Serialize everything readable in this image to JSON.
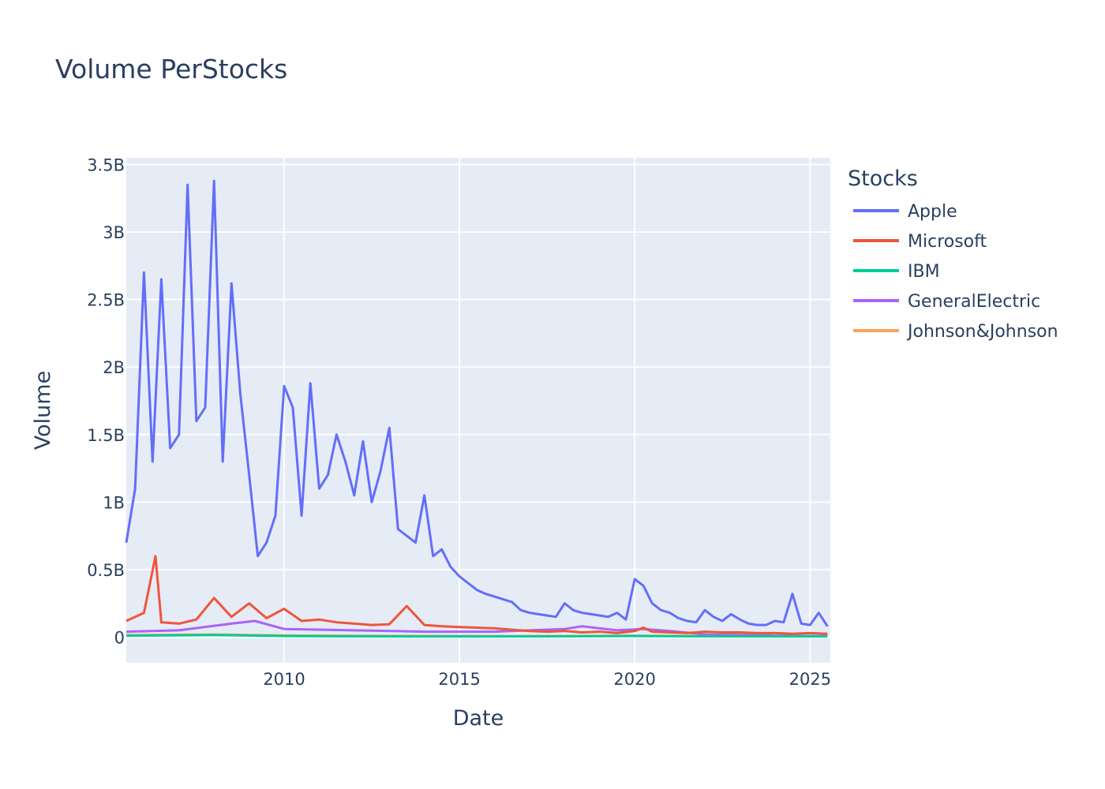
{
  "chart_data": {
    "type": "line",
    "title": "Volume PerStocks",
    "xlabel": "Date",
    "ylabel": "Volume",
    "xlim": [
      "2005-07-01",
      "2025-07-31"
    ],
    "ylim": [
      -190000000,
      3550000000
    ],
    "x_ticks": [
      {
        "date": "2010-01-01",
        "label": "2010"
      },
      {
        "date": "2015-01-01",
        "label": "2015"
      },
      {
        "date": "2020-01-01",
        "label": "2020"
      },
      {
        "date": "2025-01-01",
        "label": "2025"
      }
    ],
    "y_ticks": [
      {
        "value": 0,
        "label": "0"
      },
      {
        "value": 500000000,
        "label": "0.5B"
      },
      {
        "value": 1000000000,
        "label": "1B"
      },
      {
        "value": 1500000000,
        "label": "1.5B"
      },
      {
        "value": 2000000000,
        "label": "2B"
      },
      {
        "value": 2500000000,
        "label": "2.5B"
      },
      {
        "value": 3000000000,
        "label": "3B"
      },
      {
        "value": 3500000000,
        "label": "3.5B"
      }
    ],
    "grid": true,
    "legend_title": "Stocks",
    "legend_position": "right",
    "background_color": "#e5ecf6",
    "series": [
      {
        "name": "Apple",
        "color": "#636efa",
        "x": [
          "2005-07-01",
          "2005-10-01",
          "2006-01-01",
          "2006-04-01",
          "2006-07-01",
          "2006-10-01",
          "2007-01-01",
          "2007-04-01",
          "2007-07-01",
          "2007-10-01",
          "2008-01-01",
          "2008-04-01",
          "2008-07-01",
          "2008-10-01",
          "2009-01-01",
          "2009-04-01",
          "2009-07-01",
          "2009-10-01",
          "2010-01-01",
          "2010-04-01",
          "2010-07-01",
          "2010-10-01",
          "2011-01-01",
          "2011-04-01",
          "2011-07-01",
          "2011-10-01",
          "2012-01-01",
          "2012-04-01",
          "2012-07-01",
          "2012-10-01",
          "2013-01-01",
          "2013-04-01",
          "2013-07-01",
          "2013-10-01",
          "2014-01-01",
          "2014-04-01",
          "2014-07-01",
          "2014-10-01",
          "2015-01-01",
          "2015-04-01",
          "2015-07-01",
          "2015-10-01",
          "2016-01-01",
          "2016-04-01",
          "2016-07-01",
          "2016-10-01",
          "2017-01-01",
          "2017-04-01",
          "2017-07-01",
          "2017-10-01",
          "2018-01-01",
          "2018-04-01",
          "2018-07-01",
          "2018-10-01",
          "2019-01-01",
          "2019-04-01",
          "2019-07-01",
          "2019-10-01",
          "2020-01-01",
          "2020-04-01",
          "2020-07-01",
          "2020-10-01",
          "2021-01-01",
          "2021-04-01",
          "2021-07-01",
          "2021-10-01",
          "2022-01-01",
          "2022-04-01",
          "2022-07-01",
          "2022-10-01",
          "2023-01-01",
          "2023-04-01",
          "2023-07-01",
          "2023-10-01",
          "2024-01-01",
          "2024-04-01",
          "2024-07-01",
          "2024-10-01",
          "2025-01-01",
          "2025-04-01",
          "2025-07-01"
        ],
        "values": [
          700000000,
          1100000000,
          2700000000,
          1300000000,
          2650000000,
          1400000000,
          1500000000,
          3350000000,
          1600000000,
          1700000000,
          3380000000,
          1300000000,
          2620000000,
          1800000000,
          1200000000,
          600000000,
          700000000,
          900000000,
          1860000000,
          1700000000,
          900000000,
          1880000000,
          1100000000,
          1200000000,
          1500000000,
          1300000000,
          1050000000,
          1450000000,
          1000000000,
          1230000000,
          1550000000,
          800000000,
          750000000,
          700000000,
          1050000000,
          600000000,
          650000000,
          520000000,
          450000000,
          400000000,
          350000000,
          320000000,
          300000000,
          280000000,
          260000000,
          200000000,
          180000000,
          170000000,
          160000000,
          150000000,
          250000000,
          200000000,
          180000000,
          170000000,
          160000000,
          150000000,
          180000000,
          130000000,
          430000000,
          380000000,
          250000000,
          200000000,
          180000000,
          140000000,
          120000000,
          110000000,
          200000000,
          150000000,
          120000000,
          170000000,
          130000000,
          100000000,
          90000000,
          90000000,
          120000000,
          110000000,
          320000000,
          100000000,
          90000000,
          180000000,
          80000000
        ]
      },
      {
        "name": "Microsoft",
        "color": "#ef553b",
        "x": [
          "2005-07-01",
          "2006-01-01",
          "2006-05-01",
          "2006-07-01",
          "2007-01-01",
          "2007-07-01",
          "2008-01-01",
          "2008-07-01",
          "2009-01-01",
          "2009-07-01",
          "2010-01-01",
          "2010-07-01",
          "2011-01-01",
          "2011-07-01",
          "2012-01-01",
          "2012-07-01",
          "2013-01-01",
          "2013-07-01",
          "2014-01-01",
          "2014-07-01",
          "2015-01-01",
          "2015-07-01",
          "2016-01-01",
          "2016-07-01",
          "2017-01-01",
          "2017-07-01",
          "2018-01-01",
          "2018-07-01",
          "2019-01-01",
          "2019-07-01",
          "2020-01-01",
          "2020-04-01",
          "2020-07-01",
          "2021-01-01",
          "2021-07-01",
          "2022-01-01",
          "2022-07-01",
          "2023-01-01",
          "2023-07-01",
          "2024-01-01",
          "2024-07-01",
          "2025-01-01",
          "2025-07-01"
        ],
        "values": [
          120000000,
          180000000,
          600000000,
          110000000,
          100000000,
          130000000,
          290000000,
          150000000,
          250000000,
          140000000,
          210000000,
          120000000,
          130000000,
          110000000,
          100000000,
          90000000,
          95000000,
          230000000,
          90000000,
          80000000,
          75000000,
          70000000,
          65000000,
          55000000,
          45000000,
          40000000,
          45000000,
          35000000,
          40000000,
          30000000,
          45000000,
          70000000,
          40000000,
          35000000,
          30000000,
          40000000,
          35000000,
          35000000,
          30000000,
          30000000,
          25000000,
          30000000,
          25000000
        ]
      },
      {
        "name": "IBM",
        "color": "#00cc96",
        "x": [
          "2005-07-01",
          "2008-01-01",
          "2010-01-01",
          "2012-01-01",
          "2014-01-01",
          "2016-01-01",
          "2018-01-01",
          "2020-01-01",
          "2022-01-01",
          "2024-01-01",
          "2025-07-01"
        ],
        "values": [
          10000000,
          15000000,
          8000000,
          6000000,
          5000000,
          5000000,
          6000000,
          8000000,
          6000000,
          5000000,
          5000000
        ]
      },
      {
        "name": "GeneralElectric",
        "color": "#ab63fa",
        "x": [
          "2005-07-01",
          "2007-01-01",
          "2008-07-01",
          "2009-03-01",
          "2010-01-01",
          "2012-01-01",
          "2014-01-01",
          "2016-01-01",
          "2018-01-01",
          "2018-07-01",
          "2019-07-01",
          "2020-04-01",
          "2021-01-01",
          "2022-01-01",
          "2024-01-01",
          "2025-07-01"
        ],
        "values": [
          40000000,
          50000000,
          100000000,
          120000000,
          60000000,
          50000000,
          40000000,
          40000000,
          60000000,
          80000000,
          50000000,
          60000000,
          45000000,
          20000000,
          10000000,
          8000000
        ]
      },
      {
        "name": "Johnson&Johnson",
        "color": "#ffa15a",
        "x": [
          "2005-07-01",
          "2008-01-01",
          "2010-01-01",
          "2012-01-01",
          "2014-01-01",
          "2016-01-01",
          "2018-01-01",
          "2020-01-01",
          "2022-01-01",
          "2023-08-01",
          "2024-01-01",
          "2025-07-01"
        ],
        "values": [
          15000000,
          20000000,
          12000000,
          10000000,
          8000000,
          7000000,
          8000000,
          10000000,
          7000000,
          30000000,
          8000000,
          7000000
        ]
      }
    ]
  }
}
